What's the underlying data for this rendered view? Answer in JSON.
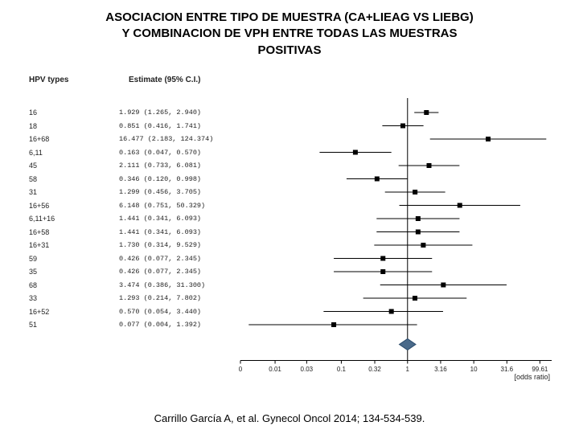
{
  "title_line1": "ASOCIACION ENTRE TIPO DE MUESTRA (CA+LIEAG VS LIEBG)",
  "title_line2": "Y COMBINACION DE VPH ENTRE TODAS LAS MUESTRAS",
  "title_line3": "POSITIVAS",
  "headers": {
    "types": "HPV types",
    "estimate": "Estimate (95% C.I.)"
  },
  "citation": "Carrillo García A, et al. Gynecol Oncol 2014; 134-534-539.",
  "axis_label": "[odds ratio]",
  "chart": {
    "type": "forest",
    "x_scale": "log",
    "x_ticks": [
      0,
      0.01,
      0.03,
      0.1,
      0.32,
      1,
      3.16,
      10,
      31.6,
      99.61
    ],
    "x_tick_labels": [
      "0",
      "0.01",
      "0.03",
      "0.1",
      "0.32",
      "1",
      "3.16",
      "10",
      "31.6",
      "99.61"
    ],
    "xlim": [
      0.003,
      150
    ],
    "row_height": 16.5,
    "row_start_y": 30,
    "marker_size": 6,
    "marker_color": "#000000",
    "line_color": "#000000",
    "line_width": 1,
    "ref_line_x": 1,
    "ref_line_color": "#000000",
    "axis_color": "#000000",
    "background_color": "#ffffff",
    "label_fontsize": 9,
    "estimate_fontsize": 8.5,
    "tick_fontsize": 8,
    "diamond_color": "#4a6a8a",
    "diamond_outline": "#2a4a6a",
    "rows": [
      {
        "label": "16",
        "est": 1.929,
        "lo": 1.265,
        "hi": 2.94,
        "est_text": "1.929 (1.265,   2.940)"
      },
      {
        "label": "18",
        "est": 0.851,
        "lo": 0.416,
        "hi": 1.741,
        "est_text": "0.851 (0.416,   1.741)"
      },
      {
        "label": "16+68",
        "est": 16.477,
        "lo": 2.183,
        "hi": 124.374,
        "est_text": "16.477 (2.183, 124.374)"
      },
      {
        "label": "6,11",
        "est": 0.163,
        "lo": 0.047,
        "hi": 0.57,
        "est_text": "0.163 (0.047,   0.570)"
      },
      {
        "label": "45",
        "est": 2.111,
        "lo": 0.733,
        "hi": 6.081,
        "est_text": "2.111 (0.733,   6.081)"
      },
      {
        "label": "58",
        "est": 0.346,
        "lo": 0.12,
        "hi": 0.998,
        "est_text": "0.346 (0.120,   0.998)"
      },
      {
        "label": "31",
        "est": 1.299,
        "lo": 0.456,
        "hi": 3.705,
        "est_text": "1.299 (0.456,   3.705)"
      },
      {
        "label": "16+56",
        "est": 6.148,
        "lo": 0.751,
        "hi": 50.329,
        "est_text": "6.148 (0.751,  50.329)"
      },
      {
        "label": "6,11+16",
        "est": 1.441,
        "lo": 0.341,
        "hi": 6.093,
        "est_text": "1.441 (0.341,   6.093)"
      },
      {
        "label": "16+58",
        "est": 1.441,
        "lo": 0.341,
        "hi": 6.093,
        "est_text": "1.441 (0.341,   6.093)"
      },
      {
        "label": "16+31",
        "est": 1.73,
        "lo": 0.314,
        "hi": 9.529,
        "est_text": "1.730 (0.314,   9.529)"
      },
      {
        "label": "59",
        "est": 0.426,
        "lo": 0.077,
        "hi": 2.345,
        "est_text": "0.426 (0.077,   2.345)"
      },
      {
        "label": "35",
        "est": 0.426,
        "lo": 0.077,
        "hi": 2.345,
        "est_text": "0.426 (0.077,   2.345)"
      },
      {
        "label": "68",
        "est": 3.474,
        "lo": 0.386,
        "hi": 31.3,
        "est_text": "3.474 (0.386,  31.300)"
      },
      {
        "label": "33",
        "est": 1.293,
        "lo": 0.214,
        "hi": 7.802,
        "est_text": "1.293 (0.214,   7.802)"
      },
      {
        "label": "16+52",
        "est": 0.57,
        "lo": 0.054,
        "hi": 3.44,
        "est_text": "0.570 (0.054,   3.440)"
      },
      {
        "label": "51",
        "est": 0.077,
        "lo": 0.004,
        "hi": 1.392,
        "est_text": "0.077 (0.004,   1.392)"
      }
    ],
    "summary": {
      "est": 1.0,
      "lo": 0.75,
      "hi": 1.33
    }
  }
}
